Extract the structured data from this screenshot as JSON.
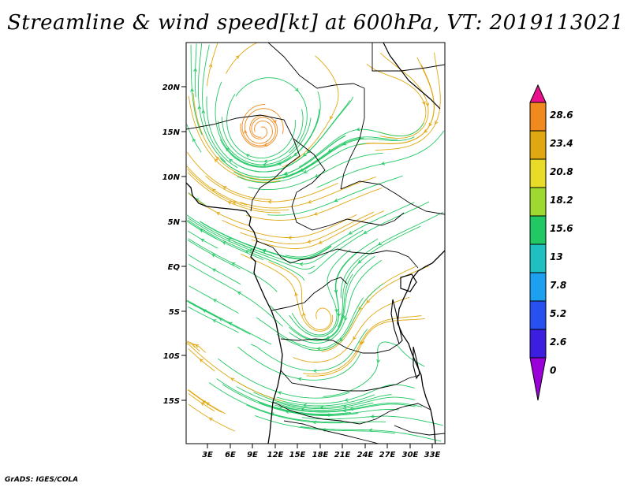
{
  "title": "Streamline & wind speed[kt] at 600hPa, VT: 2019113021",
  "credit": "GrADS: IGES/COLA",
  "map": {
    "lat_labels": [
      "20N",
      "15N",
      "10N",
      "5N",
      "EQ",
      "5S",
      "10S",
      "15S"
    ],
    "lon_labels": [
      "3E",
      "6E",
      "9E",
      "12E",
      "15E",
      "18E",
      "21E",
      "24E",
      "27E",
      "30E",
      "33E"
    ]
  },
  "colorbar": {
    "labels": [
      "28.6",
      "23.4",
      "20.8",
      "18.2",
      "15.6",
      "13",
      "7.8",
      "5.2",
      "2.6",
      "0"
    ],
    "colors": [
      "#e8108c",
      "#f08a1e",
      "#e0a810",
      "#e8dc28",
      "#a0d832",
      "#22c864",
      "#20c0c0",
      "#1ea0f0",
      "#2850f0",
      "#3c1ee0",
      "#9a00d8"
    ]
  }
}
